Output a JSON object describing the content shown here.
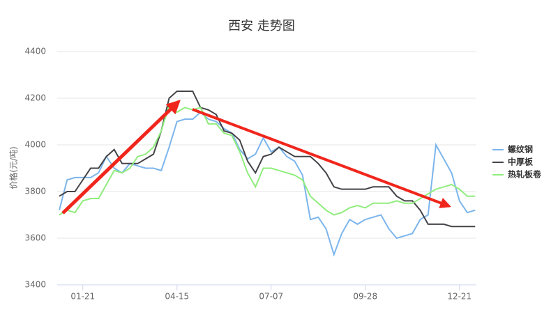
{
  "chart_data": {
    "type": "line",
    "title": "西安 走势图",
    "y_label": "价格(元/吨)",
    "categories": [
      null,
      null,
      null,
      "01-21",
      null,
      null,
      null,
      null,
      null,
      null,
      null,
      null,
      null,
      null,
      null,
      "04-15",
      null,
      null,
      null,
      null,
      null,
      null,
      null,
      null,
      null,
      null,
      null,
      "07-07",
      null,
      null,
      null,
      null,
      null,
      null,
      null,
      null,
      null,
      null,
      null,
      "09-28",
      null,
      null,
      null,
      null,
      null,
      null,
      null,
      null,
      null,
      null,
      null,
      "12-21",
      null,
      null
    ],
    "series": [
      {
        "name": "螺纹钢",
        "color": "#7cb5ec",
        "values": [
          3720,
          3850,
          3860,
          3860,
          3860,
          3880,
          3950,
          3900,
          3880,
          3920,
          3910,
          3900,
          3900,
          3890,
          3990,
          4100,
          4110,
          4110,
          4140,
          4110,
          4100,
          4070,
          4050,
          3980,
          3940,
          3960,
          4030,
          3970,
          3990,
          3950,
          3930,
          3870,
          3680,
          3690,
          3640,
          3530,
          3620,
          3680,
          3660,
          3680,
          3690,
          3700,
          3640,
          3600,
          3610,
          3620,
          3680,
          3700,
          4000,
          3940,
          3880,
          3760,
          3710,
          3720
        ]
      },
      {
        "name": "中厚板",
        "color": "#434348",
        "values": [
          3780,
          3800,
          3800,
          3850,
          3900,
          3900,
          3950,
          3980,
          3920,
          3920,
          3920,
          3940,
          3960,
          4060,
          4200,
          4230,
          4230,
          4230,
          4160,
          4150,
          4130,
          4060,
          4050,
          4020,
          3930,
          3880,
          3950,
          3960,
          3990,
          3970,
          3950,
          3950,
          3950,
          3920,
          3880,
          3820,
          3810,
          3810,
          3810,
          3810,
          3820,
          3820,
          3820,
          3780,
          3760,
          3760,
          3720,
          3660,
          3660,
          3660,
          3650,
          3650,
          3650,
          3650
        ]
      },
      {
        "name": "热轧板卷",
        "color": "#90ed7d",
        "values": [
          3700,
          3720,
          3710,
          3760,
          3770,
          3770,
          3830,
          3890,
          3880,
          3900,
          3950,
          3960,
          3990,
          4060,
          4170,
          4140,
          4160,
          4150,
          4160,
          4090,
          4090,
          4050,
          4040,
          3970,
          3880,
          3820,
          3900,
          3900,
          3890,
          3880,
          3870,
          3850,
          3780,
          3750,
          3720,
          3700,
          3710,
          3730,
          3740,
          3730,
          3750,
          3750,
          3750,
          3760,
          3750,
          3750,
          3770,
          3790,
          3810,
          3820,
          3830,
          3810,
          3780,
          3780
        ]
      }
    ],
    "ylim": [
      3400,
      4400
    ],
    "yticks": [
      3400,
      3600,
      3800,
      4000,
      4200,
      4400
    ],
    "grid": true,
    "legend": "right"
  }
}
